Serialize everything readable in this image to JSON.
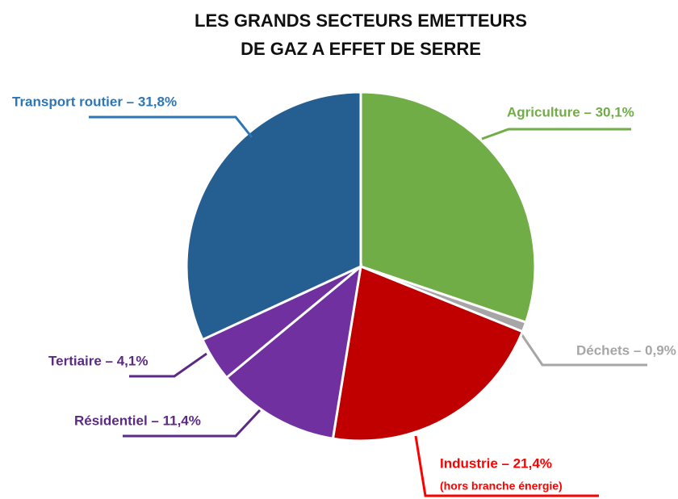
{
  "chart_data": {
    "type": "pie",
    "title": [
      "LES GRANDS SECTEURS EMETTEURS",
      "DE GAZ A EFFET DE SERRE"
    ],
    "categories": [
      "Agriculture – 30,1%",
      "Déchets – 0,9%",
      "Industrie – 21,4%",
      "Résidentiel – 11,4%",
      "Tertiaire – 4,1%",
      "Transport routier – 31,8%"
    ],
    "values": [
      30.1,
      0.9,
      21.4,
      11.4,
      4.1,
      31.8
    ],
    "colors": [
      "#70ad47",
      "#a6a6a6",
      "#c00000",
      "#7030a0",
      "#7030a0",
      "#255e91"
    ],
    "label_colors": [
      "#70ad47",
      "#a6a6a6",
      "#ff0000",
      "#5b2a86",
      "#5b2a86",
      "#2e75b6"
    ],
    "annotation": "(hors branche énergie)"
  }
}
